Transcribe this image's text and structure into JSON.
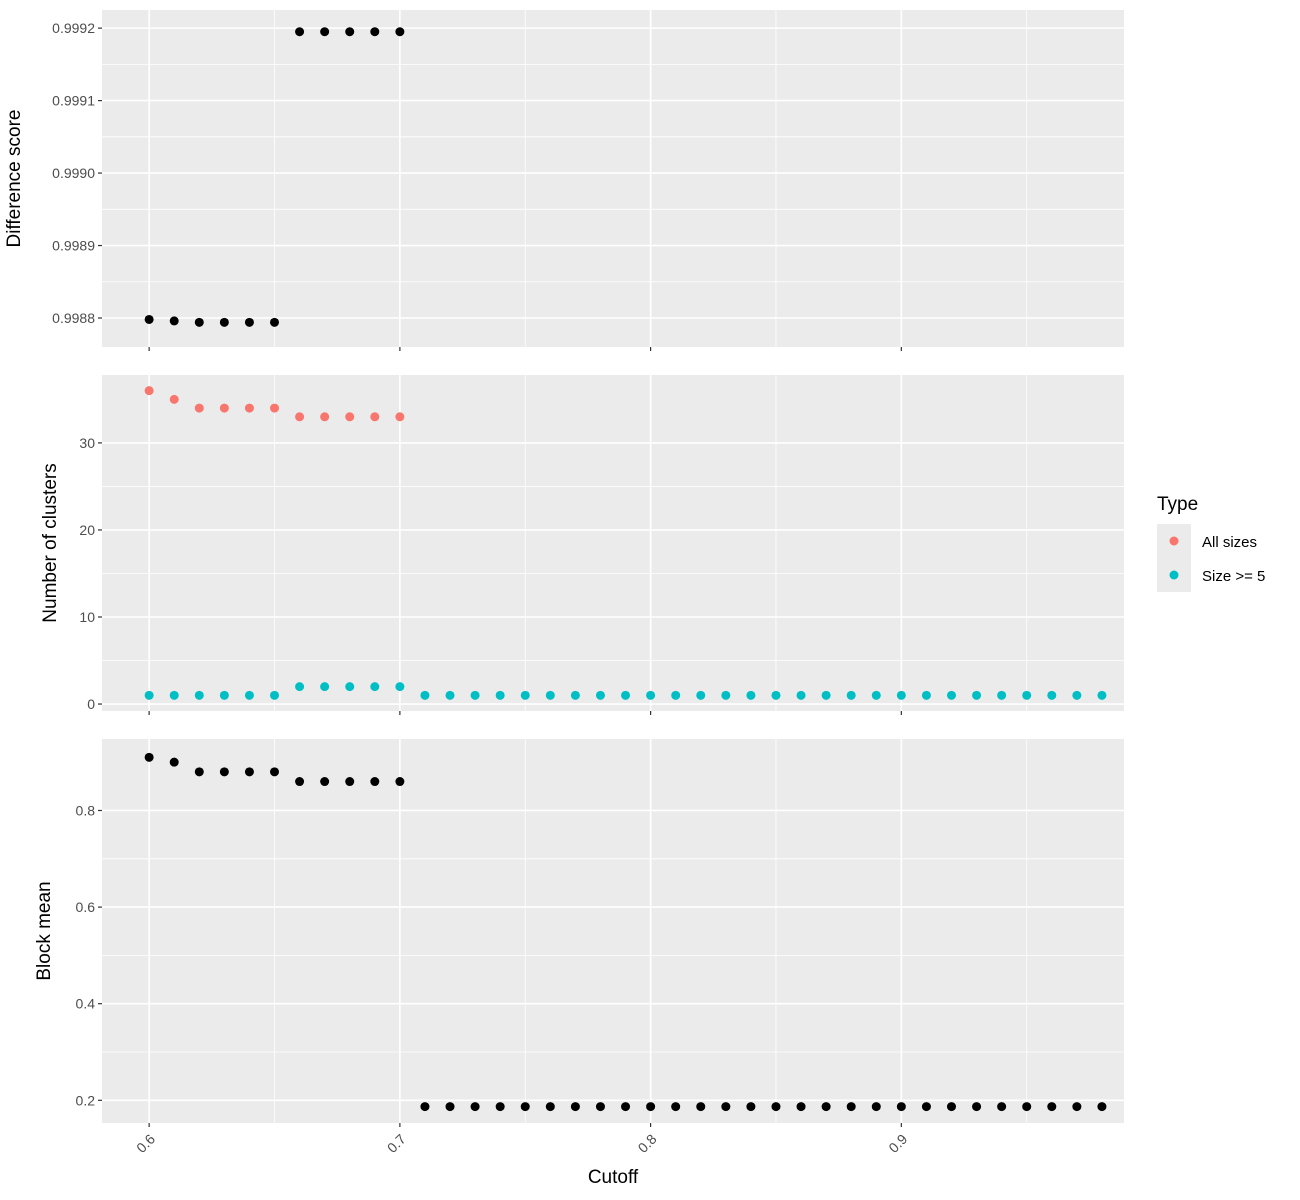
{
  "chart_data": {
    "type": "scatter",
    "xlabel": "Cutoff",
    "x_ticks": [
      0.6,
      0.7,
      0.8,
      0.9
    ],
    "x_tick_labels": [
      "0.6",
      "0.7",
      "0.8",
      "0.9"
    ],
    "xlim": [
      0.5812,
      0.9888
    ],
    "legend": {
      "title": "Type",
      "position": "right",
      "entries": [
        {
          "label": "All sizes",
          "color": "#F8766D"
        },
        {
          "label": "Size >= 5",
          "color": "#00BFC4"
        }
      ]
    },
    "grid": true,
    "panels": [
      {
        "ylabel": "Difference score",
        "ylim": [
          0.99876,
          0.999225
        ],
        "y_ticks": [
          0.9988,
          0.9989,
          0.999,
          0.9991,
          0.9992
        ],
        "y_tick_labels": [
          "0.9988",
          "0.9989",
          "0.9990",
          "0.9991",
          "0.9992"
        ],
        "series": [
          {
            "color": "#000000",
            "x": [
              0.6,
              0.61,
              0.62,
              0.63,
              0.64,
              0.65,
              0.66,
              0.67,
              0.68,
              0.69,
              0.7
            ],
            "y": [
              0.998798,
              0.998796,
              0.998794,
              0.998794,
              0.998794,
              0.998794,
              0.999195,
              0.999195,
              0.999195,
              0.999195,
              0.999195
            ]
          }
        ]
      },
      {
        "ylabel": "Number of clusters",
        "ylim": [
          -0.8,
          37.8
        ],
        "y_ticks": [
          0,
          10,
          20,
          30
        ],
        "y_tick_labels": [
          "0",
          "10",
          "20",
          "30"
        ],
        "series": [
          {
            "name": "All sizes",
            "color": "#F8766D",
            "x": [
              0.6,
              0.61,
              0.62,
              0.63,
              0.64,
              0.65,
              0.66,
              0.67,
              0.68,
              0.69,
              0.7
            ],
            "y": [
              36,
              35,
              34,
              34,
              34,
              34,
              33,
              33,
              33,
              33,
              33
            ]
          },
          {
            "name": "Size >= 5",
            "color": "#00BFC4",
            "x": [
              0.6,
              0.61,
              0.62,
              0.63,
              0.64,
              0.65,
              0.66,
              0.67,
              0.68,
              0.69,
              0.7,
              0.71,
              0.72,
              0.73,
              0.74,
              0.75,
              0.76,
              0.77,
              0.78,
              0.79,
              0.8,
              0.81,
              0.82,
              0.83,
              0.84,
              0.85,
              0.86,
              0.87,
              0.88,
              0.89,
              0.9,
              0.91,
              0.92,
              0.93,
              0.94,
              0.95,
              0.96,
              0.97,
              0.98
            ],
            "y": [
              1,
              1,
              1,
              1,
              1,
              1,
              2,
              2,
              2,
              2,
              2,
              1,
              1,
              1,
              1,
              1,
              1,
              1,
              1,
              1,
              1,
              1,
              1,
              1,
              1,
              1,
              1,
              1,
              1,
              1,
              1,
              1,
              1,
              1,
              1,
              1,
              1,
              1,
              1
            ]
          }
        ]
      },
      {
        "ylabel": "Block mean",
        "ylim": [
          0.153,
          0.948
        ],
        "y_ticks": [
          0.2,
          0.4,
          0.6,
          0.8
        ],
        "y_tick_labels": [
          "0.2",
          "0.4",
          "0.6",
          "0.8"
        ],
        "series": [
          {
            "color": "#000000",
            "x": [
              0.6,
              0.61,
              0.62,
              0.63,
              0.64,
              0.65,
              0.66,
              0.67,
              0.68,
              0.69,
              0.7,
              0.71,
              0.72,
              0.73,
              0.74,
              0.75,
              0.76,
              0.77,
              0.78,
              0.79,
              0.8,
              0.81,
              0.82,
              0.83,
              0.84,
              0.85,
              0.86,
              0.87,
              0.88,
              0.89,
              0.9,
              0.91,
              0.92,
              0.93,
              0.94,
              0.95,
              0.96,
              0.97,
              0.98
            ],
            "y": [
              0.91,
              0.9,
              0.88,
              0.88,
              0.88,
              0.88,
              0.86,
              0.86,
              0.86,
              0.86,
              0.86,
              0.187,
              0.187,
              0.187,
              0.187,
              0.187,
              0.187,
              0.187,
              0.187,
              0.187,
              0.187,
              0.187,
              0.187,
              0.187,
              0.187,
              0.187,
              0.187,
              0.187,
              0.187,
              0.187,
              0.187,
              0.187,
              0.187,
              0.187,
              0.187,
              0.187,
              0.187,
              0.187,
              0.187
            ]
          }
        ]
      }
    ]
  }
}
